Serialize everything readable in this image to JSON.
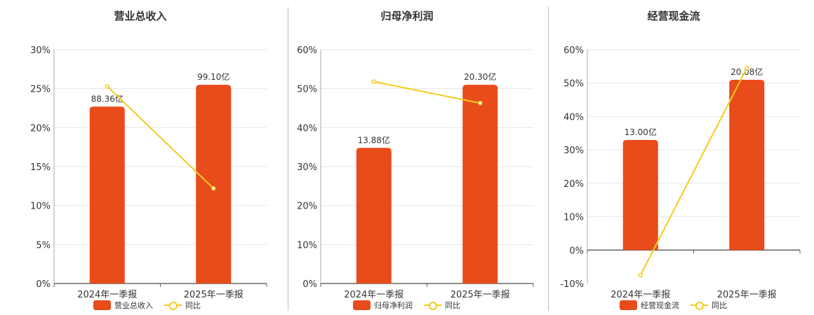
{
  "colors": {
    "bar": "#e84c1a",
    "line": "#f2cb1f",
    "grid": "#e6e6e6",
    "axis": "#666666",
    "text": "#333333"
  },
  "chart_data": [
    {
      "type": "bar",
      "title": "营业总收入",
      "categories": [
        "2024年一季报",
        "2025年一季报"
      ],
      "series": [
        {
          "name": "营业总收入",
          "kind": "bar",
          "values": [
            22.7,
            25.5
          ],
          "labels": [
            "88.36亿",
            "99.10亿"
          ]
        },
        {
          "name": "同比",
          "kind": "line",
          "values": [
            25.3,
            12.2
          ]
        }
      ],
      "ylim": [
        0,
        30
      ],
      "yticks": [
        0,
        5,
        10,
        15,
        20,
        25,
        30
      ],
      "ytick_labels": [
        "0%",
        "5%",
        "10%",
        "15%",
        "20%",
        "25%",
        "30%"
      ],
      "grid": true,
      "legend": "bottom"
    },
    {
      "type": "bar",
      "title": "归母净利润",
      "categories": [
        "2024年一季报",
        "2025年一季报"
      ],
      "series": [
        {
          "name": "归母净利润",
          "kind": "bar",
          "values": [
            34.8,
            51.0
          ],
          "labels": [
            "13.88亿",
            "20.30亿"
          ]
        },
        {
          "name": "同比",
          "kind": "line",
          "values": [
            51.8,
            46.3
          ]
        }
      ],
      "ylim": [
        0,
        60
      ],
      "yticks": [
        0,
        10,
        20,
        30,
        40,
        50,
        60
      ],
      "ytick_labels": [
        "0%",
        "10%",
        "20%",
        "30%",
        "40%",
        "50%",
        "60%"
      ],
      "grid": true,
      "legend": "bottom"
    },
    {
      "type": "bar",
      "title": "经营现金流",
      "categories": [
        "2024年一季报",
        "2025年一季报"
      ],
      "series": [
        {
          "name": "经营现金流",
          "kind": "bar",
          "values": [
            33.0,
            51.0
          ],
          "labels": [
            "13.00亿",
            "20.08亿"
          ]
        },
        {
          "name": "同比",
          "kind": "line",
          "values": [
            -7.5,
            54.5
          ]
        }
      ],
      "ylim": [
        -10,
        60
      ],
      "yticks": [
        -10,
        0,
        10,
        20,
        30,
        40,
        50,
        60
      ],
      "ytick_labels": [
        "-10%",
        "0%",
        "10%",
        "20%",
        "30%",
        "40%",
        "50%",
        "60%"
      ],
      "grid": true,
      "legend": "bottom"
    }
  ]
}
